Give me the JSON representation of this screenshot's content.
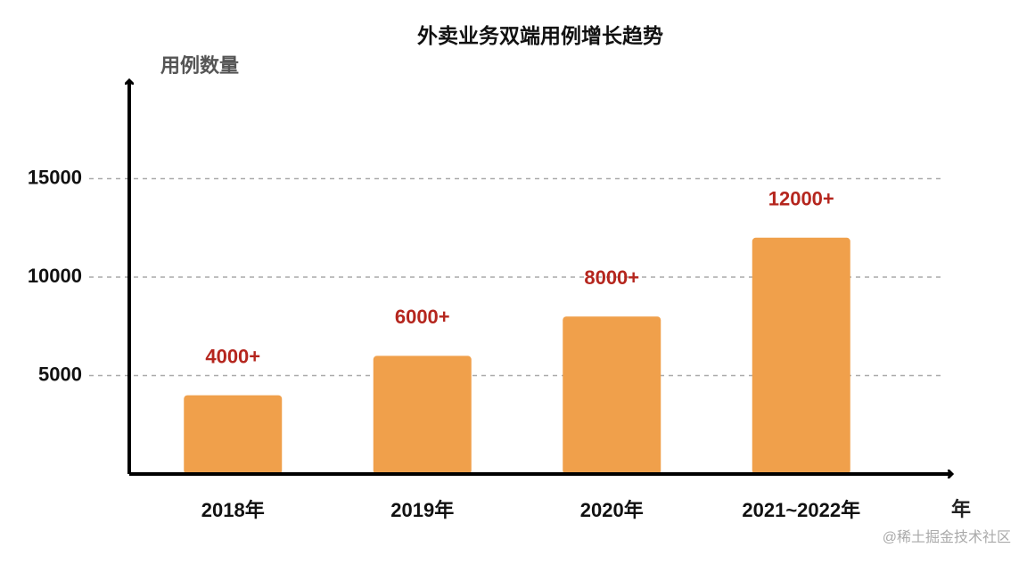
{
  "chart_data": {
    "type": "bar",
    "title": "外卖业务双端用例增长趋势",
    "y_label": "用例数量",
    "x_label": "年",
    "categories": [
      "2018年",
      "2019年",
      "2020年",
      "2021~2022年"
    ],
    "values": [
      4000,
      6000,
      8000,
      12000
    ],
    "value_labels": [
      "4000+",
      "6000+",
      "8000+",
      "12000+"
    ],
    "color": "#f0a04b",
    "label_color": "#b5261e",
    "ylim": [
      0,
      20000
    ],
    "yticks": [
      5000,
      10000,
      15000
    ],
    "grid": true,
    "watermark": "@稀土掘金技术社区"
  }
}
